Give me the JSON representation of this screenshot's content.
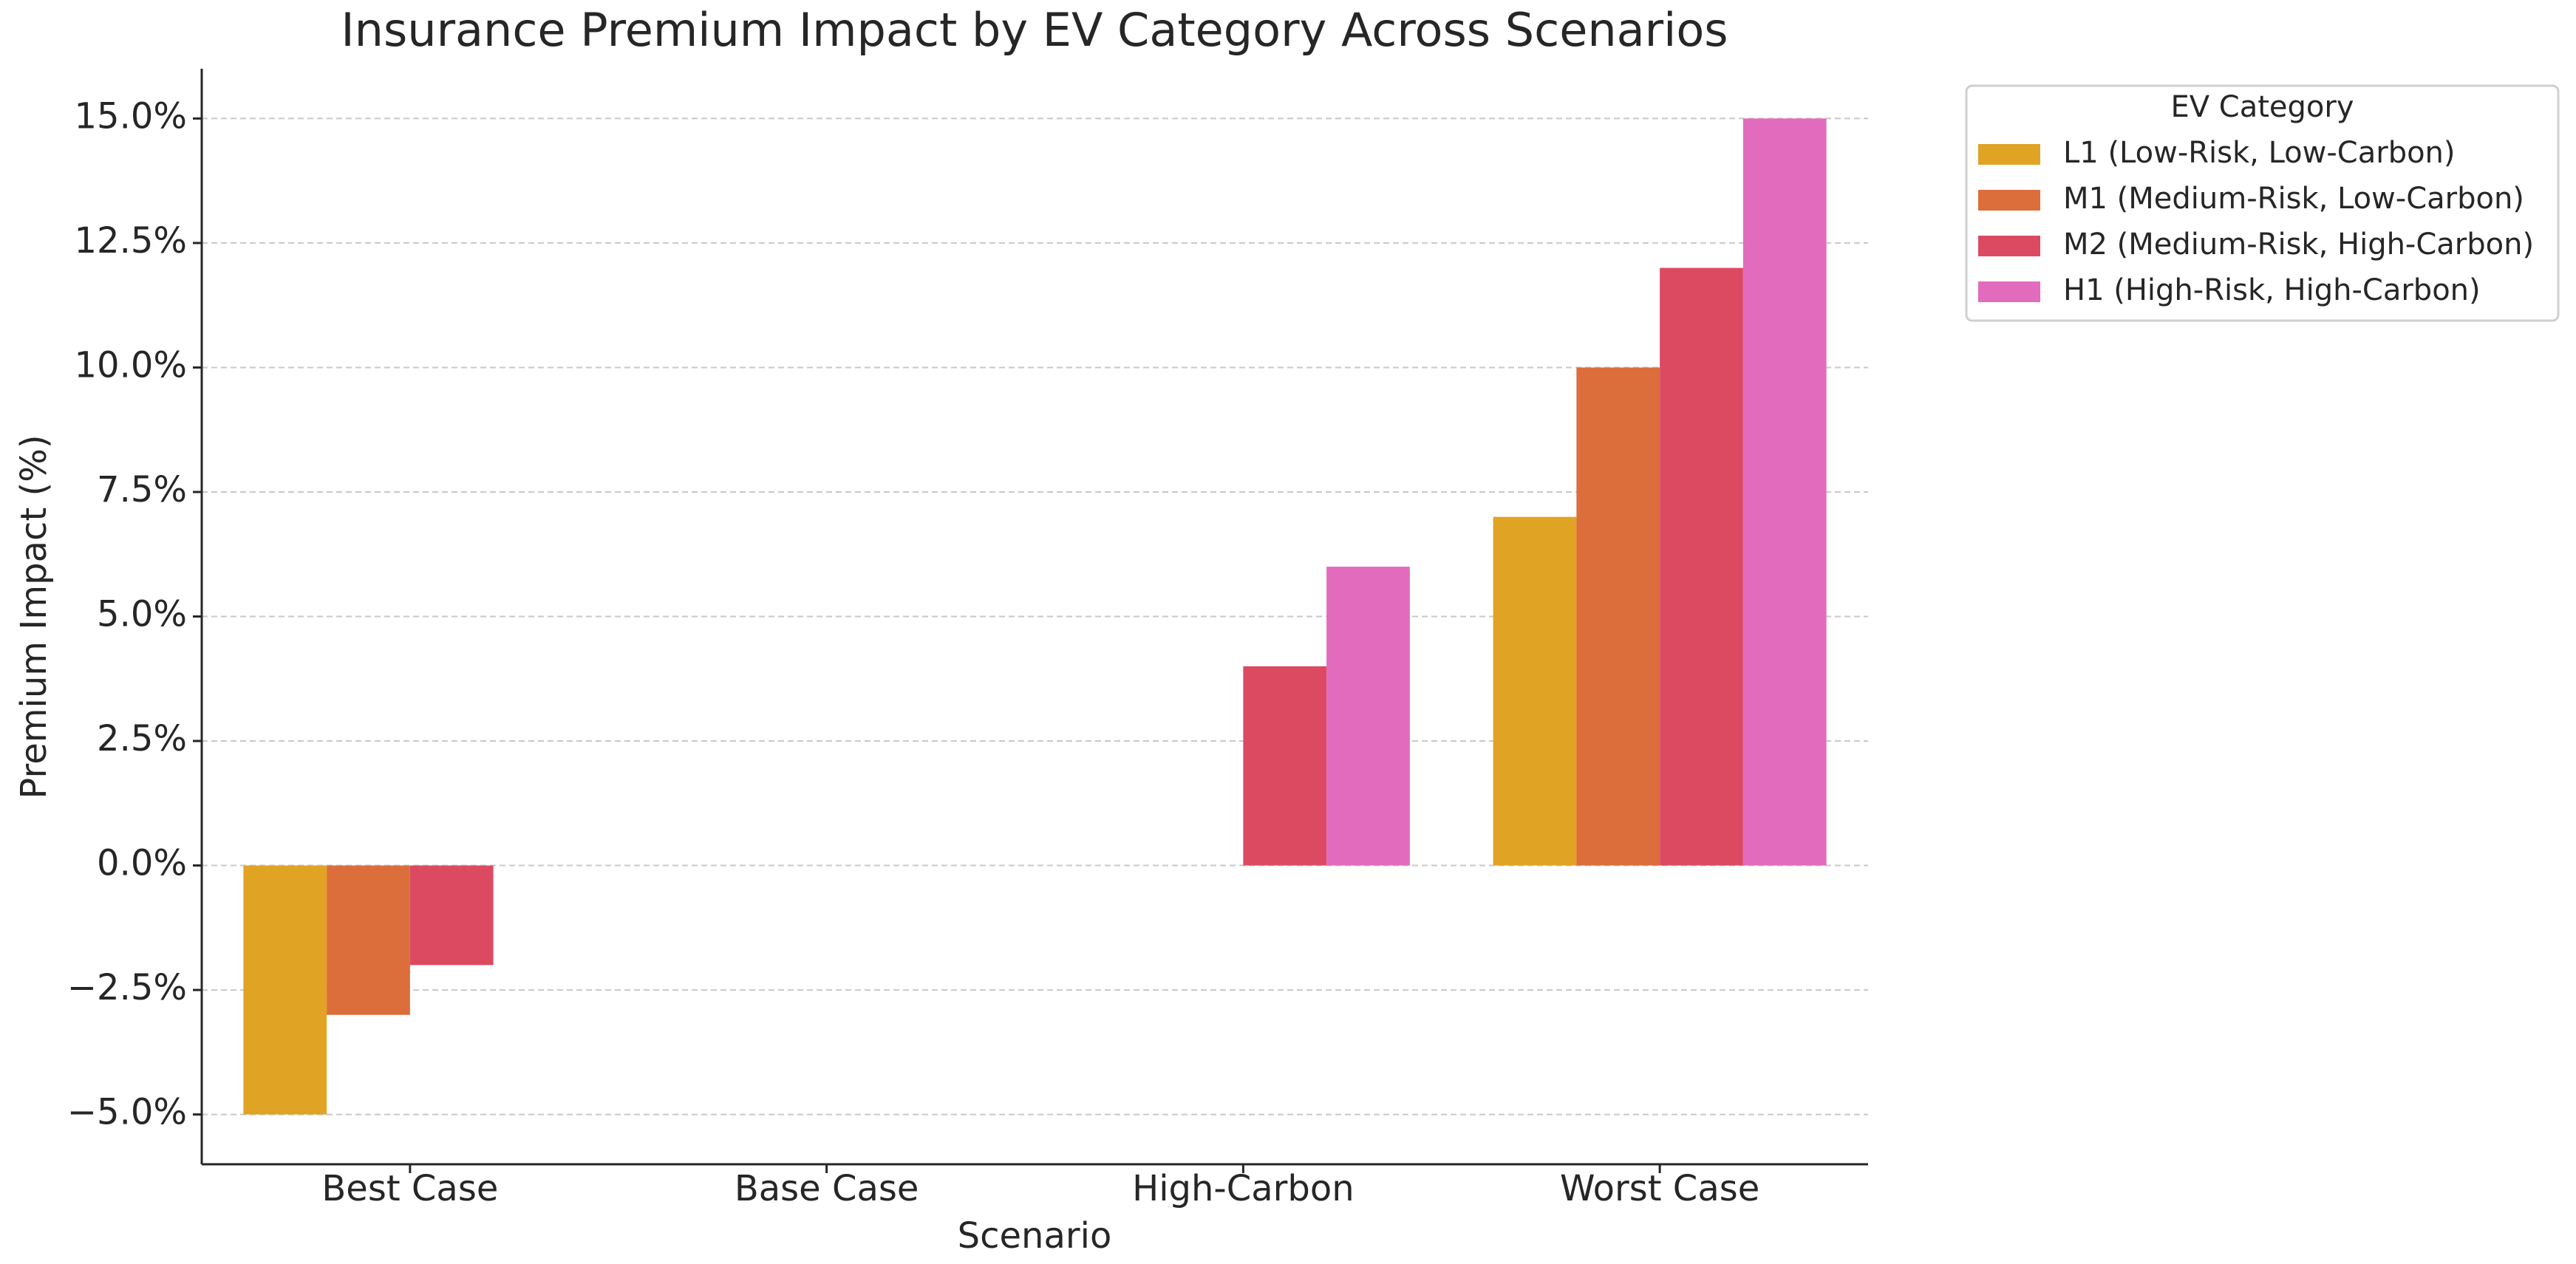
{
  "chart_data": {
    "type": "bar",
    "title": "Insurance Premium Impact by EV Category Across Scenarios",
    "x_label": "Scenario",
    "y_label": "Premium Impact (%)",
    "categories": [
      "Best Case",
      "Base Case",
      "High-Carbon",
      "Worst Case"
    ],
    "series": [
      {
        "name": "L1 (Low-Risk, Low-Carbon)",
        "color": "#e0a323",
        "values": [
          -5,
          0,
          0,
          7
        ]
      },
      {
        "name": "M1 (Medium-Risk, Low-Carbon)",
        "color": "#db6e3b",
        "values": [
          -3,
          0,
          0,
          10
        ]
      },
      {
        "name": "M2 (Medium-Risk, High-Carbon)",
        "color": "#dc4a62",
        "values": [
          -2,
          0,
          4,
          12
        ]
      },
      {
        "name": "H1 (High-Risk, High-Carbon)",
        "color": "#e36bbd",
        "values": [
          0,
          0,
          6,
          15
        ]
      }
    ],
    "ylim": [
      -6,
      16
    ],
    "yticks": [
      {
        "value": -5,
        "label": "−5.0%"
      },
      {
        "value": -2.5,
        "label": "−2.5%"
      },
      {
        "value": 0,
        "label": "0.0%"
      },
      {
        "value": 2.5,
        "label": "2.5%"
      },
      {
        "value": 5,
        "label": "5.0%"
      },
      {
        "value": 7.5,
        "label": "7.5%"
      },
      {
        "value": 10,
        "label": "10.0%"
      },
      {
        "value": 12.5,
        "label": "12.5%"
      },
      {
        "value": 15,
        "label": "15.0%"
      }
    ],
    "grid": true,
    "legend_title": "EV Category",
    "legend_loc": "outside upper right"
  }
}
